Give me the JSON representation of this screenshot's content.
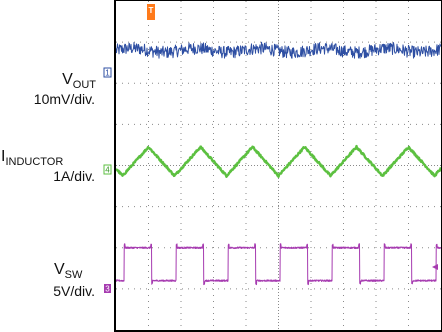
{
  "chart_data": {
    "type": "line",
    "title": "",
    "grid": true,
    "divisions": {
      "horizontal": 10,
      "vertical": 8
    },
    "trigger_marker": "T",
    "colors": {
      "vout": "#2e4fa3",
      "inductor": "#5cc040",
      "sw": "#a63bb0",
      "grid": "#8a8a8a",
      "frame": "#000000"
    },
    "channels": [
      {
        "id": "vout",
        "number": "1",
        "name_main": "V",
        "name_sub": "OUT",
        "scale": "10mV/div.",
        "icon": "channel-1-marker",
        "waveform": "noise",
        "ground_div": 6.8,
        "amplitude_div": 0.15
      },
      {
        "id": "inductor",
        "number": "4",
        "name_main": "I",
        "name_sub": "INDUCTOR",
        "scale": "1A/div.",
        "icon": "channel-4-marker",
        "waveform": "triangle",
        "ground_div": 4.1,
        "amplitude_div": 0.35,
        "period_div": 1.6,
        "phase_div": 0.2
      },
      {
        "id": "sw",
        "number": "3",
        "name_main": "V",
        "name_sub": "SW",
        "scale": "5V/div.",
        "icon": "channel-3-marker",
        "waveform": "square",
        "ground_div": 1.2,
        "high_div": 2.0,
        "period_div": 1.6,
        "duty": 0.53,
        "phase_div": 0.25
      }
    ]
  }
}
